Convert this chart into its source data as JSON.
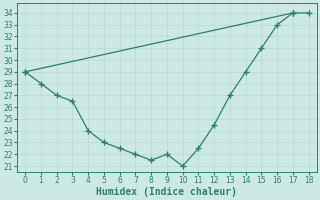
{
  "line1_x": [
    0,
    17,
    18
  ],
  "line1_y": [
    29,
    34,
    34
  ],
  "line2_x": [
    0,
    1,
    2,
    3,
    4,
    5,
    6,
    7,
    8,
    9,
    10,
    11,
    12,
    13,
    14,
    15,
    16,
    17
  ],
  "line2_y": [
    29,
    28,
    27,
    26.5,
    24,
    23,
    22.5,
    22,
    21.5,
    22,
    21,
    22.5,
    24.5,
    27,
    29,
    31,
    33,
    34
  ],
  "color": "#2e7d6e",
  "bg_color": "#cde9e5",
  "grid_color": "#b5d9d5",
  "xlabel": "Humidex (Indice chaleur)",
  "ylim": [
    20.5,
    34.8
  ],
  "xlim": [
    -0.5,
    18.5
  ],
  "yticks": [
    21,
    22,
    23,
    24,
    25,
    26,
    27,
    28,
    29,
    30,
    31,
    32,
    33,
    34
  ],
  "xticks": [
    0,
    1,
    2,
    3,
    4,
    5,
    6,
    7,
    8,
    9,
    10,
    11,
    12,
    13,
    14,
    15,
    16,
    17,
    18
  ],
  "tick_fontsize": 5.5,
  "label_fontsize": 7.0
}
